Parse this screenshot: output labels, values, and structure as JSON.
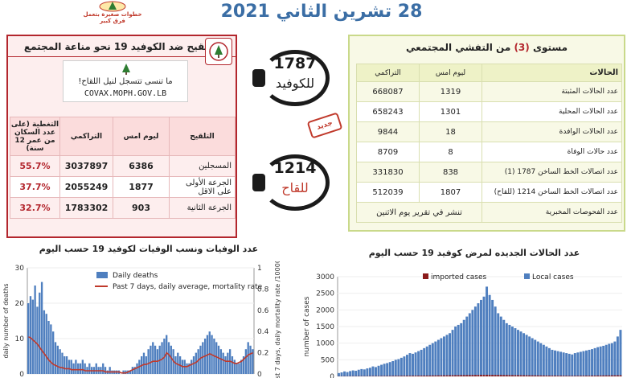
{
  "header": {
    "date_title": "28 تشرين الثاني 2021",
    "logo_text": "خطوات صغيرة بتعمل فرق كبير"
  },
  "vaccination": {
    "title": "التلقيح ضد الكوفيد 19  نحو مناعة المجتمع",
    "register_line1": "ما تنسى تتسجل لنيل اللقاح!",
    "register_url": "COVAX.MOPH.GOV.LB",
    "headers": {
      "vaccination": "التلقيح",
      "yesterday": "ليوم امس",
      "cumulative": "التراكمي",
      "coverage": "التغطية (على عدد السكان من عمر 12 سنة)"
    },
    "rows": [
      {
        "label": "المسجلين",
        "yesterday": "6386",
        "cumulative": "3037897",
        "coverage": "55.7%"
      },
      {
        "label": "الجرعة الأولى على الاقل",
        "yesterday": "1877",
        "cumulative": "2055249",
        "coverage": "37.7%"
      },
      {
        "label": "الجرعة الثانية",
        "yesterday": "903",
        "cumulative": "1783302",
        "coverage": "32.7%"
      }
    ]
  },
  "hotlines": {
    "covid": {
      "number": "1787",
      "label": "للكوفيد"
    },
    "vaccine": {
      "number": "1214",
      "label": "للقاح"
    },
    "stamp_text": "جديد"
  },
  "community": {
    "title_prefix": "مستوى",
    "level": "(3)",
    "title_suffix": "من التفشي المجتمعي",
    "headers": {
      "cases": "الحالات",
      "yesterday": "ليوم امس",
      "cumulative": "التراكمي"
    },
    "rows": [
      {
        "label": "عدد الحالات المثبتة",
        "yesterday": "1319",
        "cumulative": "668087"
      },
      {
        "label": "عدد الحالات المحلية",
        "yesterday": "1301",
        "cumulative": "658243"
      },
      {
        "label": "عدد الحالات الوافدة",
        "yesterday": "18",
        "cumulative": "9844"
      },
      {
        "label": "عدد حالات الوفاة",
        "yesterday": "8",
        "cumulative": "8709"
      },
      {
        "label": "عدد اتصالات الخط الساخن 1787  (1)",
        "yesterday": "838",
        "cumulative": "331830"
      },
      {
        "label": "عدد اتصالات الخط الساخن 1214 (للقاح)",
        "yesterday": "1807",
        "cumulative": "512039"
      }
    ],
    "pcr_label": "عدد الفحوصات المخبرية",
    "pcr_note": "تنشر في تقرير يوم الاثنين"
  },
  "colors": {
    "accent_red": "#b3262d",
    "title_blue": "#3b6ea5",
    "bar_blue": "#4f7fbf",
    "imported_red": "#8b1a1a",
    "avg_line": "#c0392b"
  },
  "chart_data": [
    {
      "type": "bar",
      "title": "عدد الوفيات ونسب الوفيات لكوفيد 19 حسب اليوم",
      "legend": [
        "Daily deaths",
        "Past 7 days, daily average, mortality rate"
      ],
      "legend_position": "top",
      "ylabel": "daily number of deaths",
      "y2label": "past 7 days, daily mortality rate /100000",
      "ylim": [
        0,
        30
      ],
      "y2lim": [
        0,
        1
      ],
      "yticks": [
        "0",
        "10",
        "20",
        "30"
      ],
      "y2ticks": [
        "0",
        "0.2",
        "0.4",
        "0.6",
        "0.8",
        "1"
      ],
      "series": [
        {
          "name": "Daily deaths",
          "values": [
            20,
            22,
            21,
            25,
            19,
            23,
            26,
            18,
            17,
            15,
            14,
            12,
            9,
            8,
            7,
            6,
            5,
            5,
            4,
            4,
            3,
            4,
            3,
            3,
            4,
            3,
            2,
            3,
            2,
            2,
            3,
            2,
            2,
            3,
            2,
            1,
            2,
            1,
            1,
            1,
            1,
            0,
            1,
            1,
            1,
            1,
            2,
            2,
            3,
            4,
            5,
            6,
            5,
            7,
            8,
            9,
            8,
            7,
            8,
            9,
            10,
            11,
            9,
            8,
            7,
            5,
            6,
            5,
            4,
            4,
            3,
            3,
            4,
            5,
            6,
            7,
            8,
            9,
            10,
            11,
            12,
            11,
            10,
            9,
            8,
            7,
            6,
            5,
            6,
            7,
            5,
            4,
            3,
            3,
            4,
            5,
            7,
            9,
            8,
            7
          ]
        },
        {
          "name": "Past 7 days, daily average, mortality rate",
          "values": [
            0.35,
            0.34,
            0.32,
            0.3,
            0.28,
            0.25,
            0.22,
            0.19,
            0.16,
            0.13,
            0.11,
            0.09,
            0.08,
            0.07,
            0.06,
            0.06,
            0.05,
            0.05,
            0.05,
            0.04,
            0.04,
            0.04,
            0.04,
            0.04,
            0.04,
            0.03,
            0.03,
            0.03,
            0.03,
            0.03,
            0.03,
            0.03,
            0.03,
            0.03,
            0.02,
            0.02,
            0.02,
            0.02,
            0.02,
            0.02,
            0.02,
            0.01,
            0.01,
            0.01,
            0.02,
            0.03,
            0.04,
            0.05,
            0.06,
            0.07,
            0.08,
            0.09,
            0.09,
            0.1,
            0.11,
            0.12,
            0.12,
            0.12,
            0.13,
            0.14,
            0.16,
            0.2,
            0.18,
            0.15,
            0.12,
            0.1,
            0.09,
            0.08,
            0.07,
            0.07,
            0.07,
            0.08,
            0.09,
            0.1,
            0.11,
            0.13,
            0.15,
            0.16,
            0.17,
            0.18,
            0.19,
            0.18,
            0.17,
            0.16,
            0.15,
            0.14,
            0.13,
            0.12,
            0.12,
            0.12,
            0.11,
            0.1,
            0.1,
            0.11,
            0.12,
            0.14,
            0.16,
            0.18,
            0.19,
            0.2
          ]
        }
      ]
    },
    {
      "type": "bar",
      "title": "عدد الحالات الجديده لمرض كوفيد 19 حسب اليوم",
      "legend": [
        "imported cases",
        "Local cases"
      ],
      "legend_position": "top",
      "ylabel": "number of cases",
      "ylim": [
        0,
        3000
      ],
      "yticks": [
        "0",
        "500",
        "1000",
        "1500",
        "2000",
        "2500",
        "3000"
      ],
      "series": [
        {
          "name": "Local cases",
          "values": [
            100,
            120,
            150,
            130,
            160,
            180,
            170,
            200,
            220,
            210,
            240,
            260,
            300,
            280,
            320,
            350,
            380,
            400,
            430,
            460,
            500,
            520,
            560,
            600,
            650,
            700,
            680,
            720,
            760,
            800,
            850,
            900,
            950,
            1000,
            1050,
            1100,
            1150,
            1200,
            1250,
            1300,
            1400,
            1500,
            1550,
            1600,
            1700,
            1800,
            1900,
            2000,
            2100,
            2200,
            2300,
            2400,
            2700,
            2450,
            2300,
            2100,
            1900,
            1800,
            1700,
            1600,
            1550,
            1500,
            1450,
            1400,
            1350,
            1300,
            1250,
            1200,
            1150,
            1100,
            1050,
            1000,
            950,
            900,
            850,
            800,
            780,
            760,
            740,
            720,
            700,
            680,
            660,
            700,
            720,
            740,
            760,
            780,
            800,
            820,
            850,
            880,
            900,
            920,
            950,
            980,
            1000,
            1050,
            1200,
            1400
          ]
        },
        {
          "name": "imported cases",
          "values": [
            5,
            5,
            6,
            5,
            6,
            7,
            6,
            8,
            8,
            7,
            8,
            9,
            10,
            9,
            10,
            11,
            12,
            12,
            13,
            14,
            15,
            16,
            17,
            18,
            19,
            20,
            20,
            21,
            22,
            23,
            24,
            25,
            26,
            27,
            28,
            29,
            30,
            31,
            32,
            33,
            34,
            35,
            36,
            37,
            38,
            39,
            40,
            41,
            42,
            43,
            44,
            45,
            46,
            45,
            44,
            43,
            42,
            41,
            40,
            39,
            38,
            37,
            36,
            35,
            34,
            33,
            32,
            31,
            30,
            29,
            28,
            27,
            26,
            25,
            24,
            23,
            22,
            21,
            20,
            19,
            18,
            17,
            16,
            17,
            18,
            19,
            20,
            21,
            22,
            23,
            24,
            25,
            26,
            27,
            28,
            29,
            30,
            31,
            32,
            33
          ]
        }
      ]
    }
  ]
}
